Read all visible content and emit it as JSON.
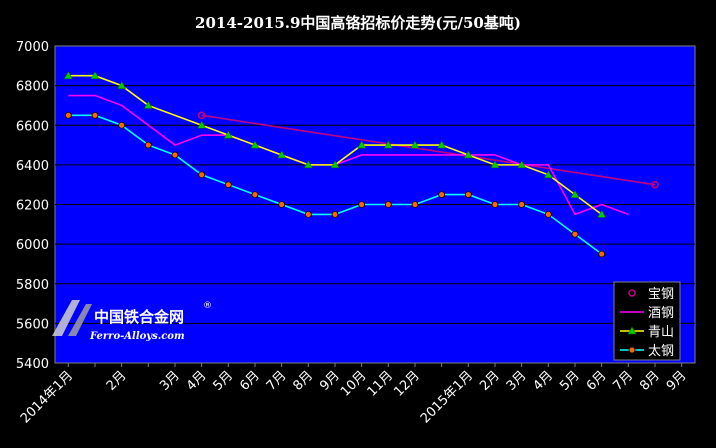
{
  "chart_data": {
    "type": "line",
    "title": "2014-2015.9中国高铬招标价走势(元/50基吨)",
    "categories": [
      "2014年1月",
      "",
      "2月",
      "",
      "3月",
      "4月",
      "5月",
      "6月",
      "7月",
      "8月",
      "9月",
      "10月",
      "11月",
      "12月",
      "",
      "2015年1月",
      "2月",
      "3月",
      "4月",
      "5月",
      "6月",
      "7月",
      "8月",
      "9月"
    ],
    "x_tick_labels": [
      "2014年1月",
      "2月",
      "3月",
      "4月",
      "5月",
      "6月",
      "7月",
      "8月",
      "9月",
      "10月",
      "11月",
      "12月",
      "2015年1月",
      "2月",
      "3月",
      "4月",
      "5月",
      "6月",
      "7月",
      "8月",
      "9月"
    ],
    "ylim": [
      5400,
      7000
    ],
    "yticks": [
      5400,
      5600,
      5800,
      6000,
      6200,
      6400,
      6600,
      6800,
      7000
    ],
    "grid": true,
    "legend_position": "bottom-right",
    "series": [
      {
        "name": "宝钢",
        "color": "#C00080",
        "marker": "circle-open",
        "values": [
          null,
          null,
          null,
          null,
          null,
          6650,
          null,
          null,
          null,
          null,
          null,
          null,
          null,
          null,
          null,
          null,
          null,
          null,
          null,
          null,
          null,
          null,
          6300,
          null
        ]
      },
      {
        "name": "酒钢",
        "color": "#FF00FF",
        "marker": "none",
        "values": [
          6750,
          6750,
          6700,
          null,
          6500,
          6550,
          6550,
          6500,
          6450,
          6400,
          6400,
          6450,
          6450,
          6450,
          6450,
          6450,
          6450,
          6400,
          6400,
          6150,
          6200,
          6150,
          null,
          null
        ]
      },
      {
        "name": "青山",
        "color": "#FFFF00",
        "marker": "triangle",
        "values": [
          6850,
          6850,
          6800,
          6700,
          null,
          6600,
          6550,
          6500,
          6450,
          6400,
          6400,
          6500,
          6500,
          6500,
          6500,
          6450,
          6400,
          6400,
          6350,
          6250,
          6150,
          null,
          null,
          null
        ]
      },
      {
        "name": "太钢",
        "color": "#00FFFF",
        "marker": "circle",
        "values": [
          6650,
          6650,
          6600,
          6500,
          6450,
          6350,
          6300,
          6250,
          6200,
          6150,
          6150,
          6200,
          6200,
          6200,
          6250,
          6250,
          6200,
          6200,
          6150,
          6050,
          5950,
          null,
          null,
          null
        ]
      }
    ]
  },
  "watermark": {
    "brand_cn": "中国铁合金网",
    "brand_en": "Ferro-Alloys.com",
    "registered": "®"
  }
}
